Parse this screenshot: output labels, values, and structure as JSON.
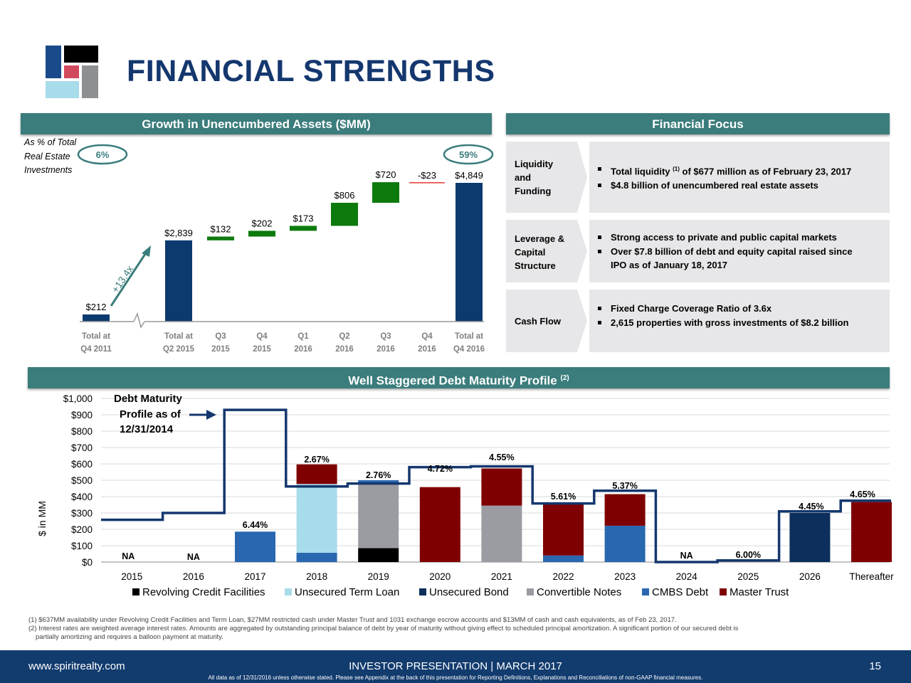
{
  "page": {
    "title": "FINANCIAL STRENGTHS"
  },
  "colors": {
    "navy": "#0d3a6e",
    "green": "#0c7a0c",
    "teal_header": "#3b7c7c",
    "panel_grey": "#e7e7e9",
    "revolving": "#000000",
    "term_loan": "#a7dcea",
    "unsecured_bond": "#0d2f5c",
    "convertible": "#9a9ca1",
    "cmbs": "#2968b0",
    "master_trust": "#7f0000"
  },
  "sections": {
    "left_header": "Growth in Unencumbered Assets ($MM)",
    "right_header": "Financial Focus",
    "bottom_header": "Well Staggered Debt Maturity Profile",
    "bottom_header_sup": "(2)"
  },
  "growth_chart": {
    "pct_label_lines": [
      "As % of Total",
      "Real Estate",
      "Investments"
    ],
    "pct_start": "6%",
    "pct_end": "59%",
    "growth_multiple": "+13.4x"
  },
  "financial_focus": [
    {
      "label_lines": [
        "Liquidity",
        "and",
        "Funding"
      ],
      "bullets": [
        {
          "text": "Total liquidity ",
          "sup": "(1)",
          "text2": " of $677 million as of February 23, 2017"
        },
        {
          "text": "$4.8 billion of unencumbered real estate assets"
        }
      ]
    },
    {
      "label_lines": [
        "Leverage &",
        "Capital",
        "Structure"
      ],
      "bullets": [
        {
          "text": "Strong access to private and public capital markets"
        },
        {
          "text": "Over $7.8 billion of debt and equity capital raised since"
        },
        {
          "text": "IPO as of January 18, 2017",
          "cont": true
        }
      ]
    },
    {
      "label_lines": [
        "Cash Flow"
      ],
      "bullets": [
        {
          "text": "Fixed Charge Coverage Ratio of 3.6x"
        },
        {
          "text": "2,615 properties with gross investments of $8.2 billion"
        }
      ]
    }
  ],
  "debt_chart": {
    "ylabel": "$ in MM",
    "annotation_lines": [
      "Debt Maturity",
      "Profile as of",
      "12/31/2014"
    ],
    "rate_labels": [
      {
        "year": "2015",
        "label": "NA"
      },
      {
        "year": "2016",
        "label": "NA"
      },
      {
        "year": "2017",
        "label": "6.44%"
      },
      {
        "year": "2018",
        "label": "2.67%"
      },
      {
        "year": "2019",
        "label": "2.76%"
      },
      {
        "year": "2020",
        "label": "4.72%"
      },
      {
        "year": "2021",
        "label": "4.55%"
      },
      {
        "year": "2022",
        "label": "5.61%"
      },
      {
        "year": "2023",
        "label": "5.37%"
      },
      {
        "year": "2024",
        "label": "NA"
      },
      {
        "year": "2025",
        "label": "6.00%"
      },
      {
        "year": "2026",
        "label": "4.45%"
      },
      {
        "year": "Thereafter",
        "label": "4.65%"
      }
    ]
  },
  "chart_data": [
    {
      "type": "bar",
      "subtype": "waterfall",
      "title": "Growth in Unencumbered Assets ($MM)",
      "categories": [
        "Total at Q4 2011",
        "Total at Q2 2015",
        "Q3 2015",
        "Q4 2015",
        "Q1 2016",
        "Q2 2016",
        "Q3 2016",
        "Q4 2016",
        "Total at Q4 2016"
      ],
      "category_lines": [
        [
          "Total at",
          "Q4 2011"
        ],
        [
          "Total at",
          "Q2 2015"
        ],
        [
          "Q3",
          "2015"
        ],
        [
          "Q4",
          "2015"
        ],
        [
          "Q1",
          "2016"
        ],
        [
          "Q2",
          "2016"
        ],
        [
          "Q3",
          "2016"
        ],
        [
          "Q4",
          "2016"
        ],
        [
          "Total at",
          "Q4 2016"
        ]
      ],
      "values": [
        212,
        2839,
        132,
        202,
        173,
        806,
        720,
        -23,
        4849
      ],
      "value_labels": [
        "$212",
        "$2,839",
        "$132",
        "$202",
        "$173",
        "$806",
        "$720",
        "-$23",
        "$4,849"
      ],
      "kinds": [
        "total",
        "total",
        "delta",
        "delta",
        "delta",
        "delta",
        "delta",
        "delta",
        "total"
      ],
      "axis_break_after_index": 0
    },
    {
      "type": "bar",
      "subtype": "stacked",
      "title": "Well Staggered Debt Maturity Profile",
      "ylabel": "$ in MM",
      "ylim": [
        0,
        1000
      ],
      "yticks": [
        "$0",
        "$100",
        "$200",
        "$300",
        "$400",
        "$500",
        "$600",
        "$700",
        "$800",
        "$900",
        "$1,000"
      ],
      "categories": [
        "2015",
        "2016",
        "2017",
        "2018",
        "2019",
        "2020",
        "2021",
        "2022",
        "2023",
        "2024",
        "2025",
        "2026",
        "Thereafter"
      ],
      "series": [
        {
          "name": "Revolving Credit Facilities",
          "values": [
            0,
            0,
            0,
            0,
            85,
            0,
            0,
            0,
            0,
            0,
            0,
            0,
            0
          ]
        },
        {
          "name": "Unsecured Term Loan",
          "values": [
            0,
            0,
            0,
            420,
            0,
            0,
            0,
            0,
            0,
            0,
            0,
            0,
            0
          ]
        },
        {
          "name": "Unsecured Bond",
          "values": [
            0,
            0,
            0,
            0,
            0,
            0,
            0,
            0,
            0,
            0,
            0,
            300,
            0
          ]
        },
        {
          "name": "Convertible Notes",
          "values": [
            0,
            0,
            0,
            0,
            402,
            0,
            345,
            0,
            0,
            0,
            0,
            0,
            0
          ]
        },
        {
          "name": "CMBS Debt",
          "values": [
            0,
            0,
            186,
            57,
            13,
            0,
            0,
            40,
            222,
            0,
            0,
            0,
            0
          ]
        },
        {
          "name": "Master Trust",
          "values": [
            0,
            0,
            0,
            120,
            0,
            458,
            227,
            318,
            193,
            0,
            0,
            0,
            367
          ]
        }
      ],
      "step_line": {
        "name": "Debt Maturity Profile as of 12/31/2014",
        "values": [
          258,
          300,
          930,
          462,
          480,
          580,
          585,
          358,
          436,
          0,
          10,
          310,
          375
        ]
      },
      "legend": "bottom"
    }
  ],
  "footnotes": [
    "(1) $637MM availability under Revolving Credit Facilities and Term Loan, $27MM restricted cash under Master Trust and 1031 exchange escrow accounts and $13MM of cash and cash equivalents, as of Feb 23, 2017.",
    "(2) Interest rates are weighted average interest rates. Amounts are aggregated by outstanding principal balance of debt by year of maturity without giving effect to scheduled principal amortization. A significant portion of our secured debt is",
    "partially amortizing and requires a balloon payment at maturity."
  ],
  "footer": {
    "url": "www.spiritrealty.com",
    "center": "INVESTOR PRESENTATION | MARCH 2017",
    "page_number": "15",
    "note": "All data as of 12/31/2016 unless otherwise stated.  Please see Appendix at the back of this presentation for Reporting Definitions, Explanations and Reconciliations of non-GAAP financial measures."
  }
}
